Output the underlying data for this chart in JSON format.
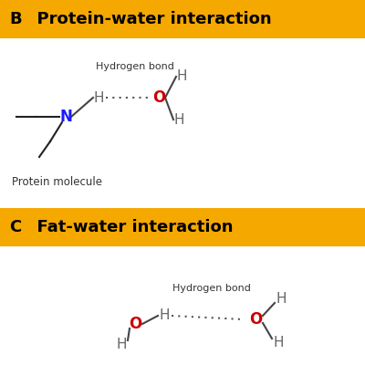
{
  "bg_color": "#ffffff",
  "banner_color": "#F5A800",
  "banner_text_color": "#000000",
  "section_B_label": "B",
  "section_B_title": "  Protein-water interaction",
  "section_C_label": "C",
  "section_C_title": "  Fat-water interaction",
  "atom_color_N": "#1a1aff",
  "atom_color_O": "#cc0000",
  "atom_color_H": "#666666",
  "atom_color_C": "#222222",
  "bond_color": "#444444",
  "hbond_color": "#555555",
  "label_color": "#333333"
}
